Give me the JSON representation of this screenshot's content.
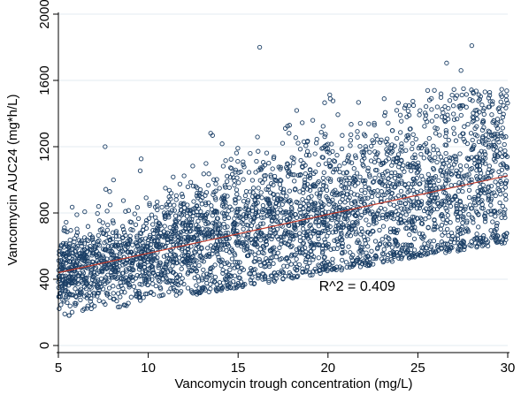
{
  "chart_data": {
    "type": "scatter",
    "title": "",
    "xlabel": "Vancomycin trough concentration (mg/L)",
    "ylabel": "Vancomycin AUC24 (mg*h/L)",
    "xlim": [
      5,
      30
    ],
    "ylim": [
      0,
      2000
    ],
    "xticks": [
      "5",
      "10",
      "15",
      "20",
      "25",
      "30"
    ],
    "yticks": [
      "0",
      "400",
      "800",
      "1200",
      "1600",
      "2000"
    ],
    "grid": true,
    "legend": "none",
    "annotation": "R^2 = 0.409",
    "fit_line": {
      "x": [
        5,
        30
      ],
      "y": [
        440,
        1025
      ]
    },
    "approx_point_count": 3500,
    "notable_points": [
      {
        "x": 16.2,
        "y": 1800
      },
      {
        "x": 28.0,
        "y": 1810
      },
      {
        "x": 26.6,
        "y": 1705
      },
      {
        "x": 27.4,
        "y": 1660
      },
      {
        "x": 7.6,
        "y": 1200
      }
    ],
    "colors": {
      "marker": "#1b3f66",
      "fit_line": "#c0392b",
      "grid": "#e3ebf0",
      "axis": "#000000"
    }
  }
}
